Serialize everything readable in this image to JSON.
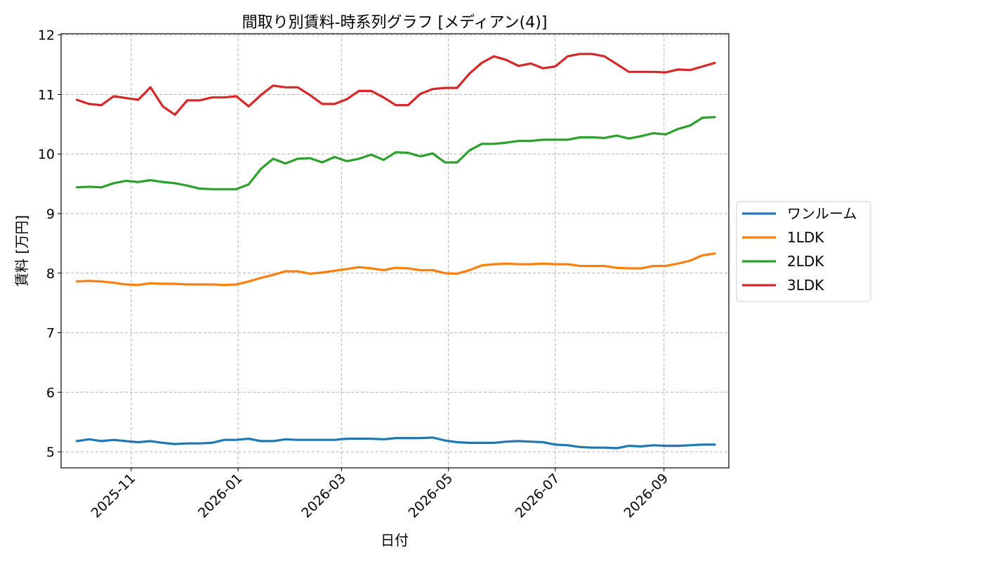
{
  "chart_data": {
    "type": "line",
    "title": "間取り別賃料-時系列グラフ [メディアン(4)]",
    "xlabel": "日付",
    "ylabel": "賃料 [万円]",
    "ylim": [
      4.73,
      12.02
    ],
    "y_ticks": [
      5,
      6,
      7,
      8,
      9,
      10,
      11,
      12
    ],
    "x_ticks": [
      "2025-11",
      "2026-01",
      "2026-03",
      "2026-05",
      "2026-07",
      "2026-09"
    ],
    "grid": true,
    "legend_position": "center-right-outside",
    "x": [
      "2025-10-01",
      "2025-10-08",
      "2025-10-15",
      "2025-10-22",
      "2025-10-29",
      "2025-11-05",
      "2025-11-12",
      "2025-11-19",
      "2025-11-26",
      "2025-12-03",
      "2025-12-10",
      "2025-12-17",
      "2025-12-24",
      "2025-12-31",
      "2026-01-07",
      "2026-01-14",
      "2026-01-21",
      "2026-01-28",
      "2026-02-04",
      "2026-02-11",
      "2026-02-18",
      "2026-02-25",
      "2026-03-04",
      "2026-03-11",
      "2026-03-18",
      "2026-03-25",
      "2026-04-01",
      "2026-04-08",
      "2026-04-15",
      "2026-04-22",
      "2026-04-29",
      "2026-05-06",
      "2026-05-13",
      "2026-05-20",
      "2026-05-27",
      "2026-06-03",
      "2026-06-10",
      "2026-06-17",
      "2026-06-24",
      "2026-07-01",
      "2026-07-08",
      "2026-07-15",
      "2026-07-22",
      "2026-07-29",
      "2026-08-05",
      "2026-08-12",
      "2026-08-19",
      "2026-08-26",
      "2026-09-02",
      "2026-09-09",
      "2026-09-16",
      "2026-09-23",
      "2026-09-30"
    ],
    "series": [
      {
        "name": "ワンルーム",
        "color": "#1f77b4",
        "values": [
          5.18,
          5.21,
          5.18,
          5.2,
          5.18,
          5.16,
          5.18,
          5.15,
          5.13,
          5.14,
          5.14,
          5.15,
          5.2,
          5.2,
          5.22,
          5.18,
          5.18,
          5.21,
          5.2,
          5.2,
          5.2,
          5.2,
          5.22,
          5.22,
          5.22,
          5.21,
          5.23,
          5.23,
          5.23,
          5.24,
          5.19,
          5.16,
          5.15,
          5.15,
          5.15,
          5.17,
          5.18,
          5.17,
          5.16,
          5.12,
          5.11,
          5.08,
          5.07,
          5.07,
          5.06,
          5.1,
          5.09,
          5.11,
          5.1,
          5.1,
          5.11,
          5.12,
          5.12
        ]
      },
      {
        "name": "1LDK",
        "color": "#ff7f0e",
        "values": [
          7.86,
          7.87,
          7.86,
          7.84,
          7.81,
          7.8,
          7.83,
          7.82,
          7.82,
          7.81,
          7.81,
          7.81,
          7.8,
          7.81,
          7.86,
          7.92,
          7.97,
          8.03,
          8.03,
          7.99,
          8.01,
          8.04,
          8.07,
          8.1,
          8.08,
          8.05,
          8.09,
          8.08,
          8.05,
          8.05,
          8.0,
          7.99,
          8.05,
          8.13,
          8.15,
          8.16,
          8.15,
          8.15,
          8.16,
          8.15,
          8.15,
          8.12,
          8.12,
          8.12,
          8.09,
          8.08,
          8.08,
          8.12,
          8.12,
          8.16,
          8.21,
          8.3,
          8.33
        ]
      },
      {
        "name": "2LDK",
        "color": "#2ca02c",
        "values": [
          9.44,
          9.45,
          9.44,
          9.51,
          9.55,
          9.53,
          9.56,
          9.53,
          9.51,
          9.47,
          9.42,
          9.41,
          9.41,
          9.41,
          9.49,
          9.75,
          9.92,
          9.84,
          9.92,
          9.93,
          9.86,
          9.95,
          9.88,
          9.92,
          9.99,
          9.9,
          10.03,
          10.02,
          9.96,
          10.01,
          9.86,
          9.86,
          10.06,
          10.17,
          10.17,
          10.19,
          10.22,
          10.22,
          10.24,
          10.24,
          10.24,
          10.28,
          10.28,
          10.27,
          10.31,
          10.26,
          10.3,
          10.35,
          10.33,
          10.42,
          10.48,
          10.61,
          10.62
        ]
      },
      {
        "name": "3LDK",
        "color": "#d62728",
        "values": [
          10.91,
          10.84,
          10.82,
          10.97,
          10.94,
          10.91,
          11.12,
          10.8,
          10.66,
          10.9,
          10.9,
          10.95,
          10.95,
          10.97,
          10.8,
          10.99,
          11.15,
          11.12,
          11.12,
          10.99,
          10.84,
          10.84,
          10.92,
          11.06,
          11.06,
          10.95,
          10.82,
          10.82,
          11.01,
          11.09,
          11.11,
          11.11,
          11.35,
          11.53,
          11.64,
          11.58,
          11.48,
          11.52,
          11.44,
          11.47,
          11.64,
          11.68,
          11.68,
          11.64,
          11.51,
          11.38,
          11.38,
          11.38,
          11.37,
          11.42,
          11.41,
          11.47,
          11.53
        ]
      }
    ]
  }
}
